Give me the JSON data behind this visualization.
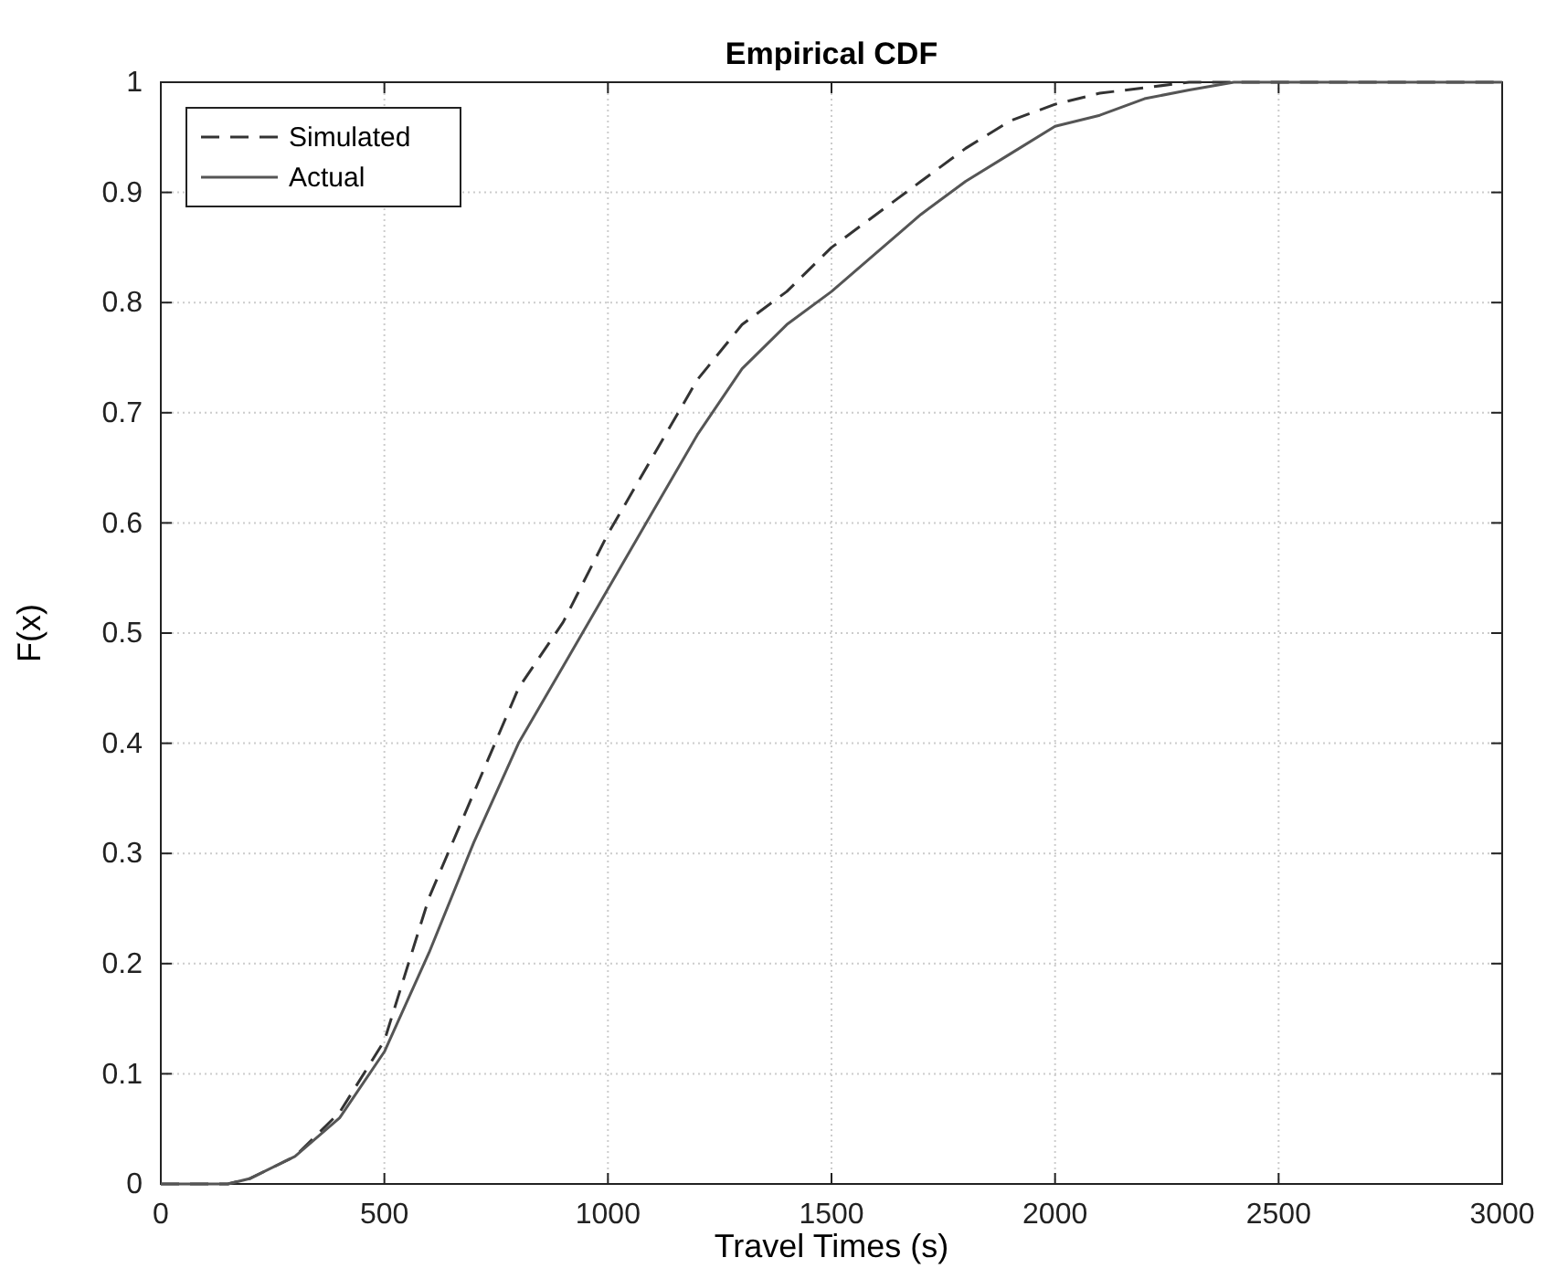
{
  "chart_data": {
    "type": "line",
    "title": "Empirical CDF",
    "xlabel": "Travel Times (s)",
    "ylabel": "F(x)",
    "xlim": [
      0,
      3000
    ],
    "xticks": [
      0,
      500,
      1000,
      1500,
      2000,
      2500,
      3000
    ],
    "ylim": [
      0,
      1
    ],
    "yticks": [
      0,
      0.1,
      0.2,
      0.3,
      0.4,
      0.5,
      0.6,
      0.7,
      0.8,
      0.9,
      1
    ],
    "grid": true,
    "legend": "top left",
    "series": [
      {
        "name": "Simulated",
        "color": "#333333",
        "line_style": "dashed",
        "x": [
          0,
          150,
          200,
          300,
          400,
          500,
          600,
          700,
          800,
          900,
          1000,
          1100,
          1200,
          1300,
          1400,
          1500,
          1600,
          1700,
          1800,
          1900,
          2000,
          2100,
          2200,
          2300,
          2500,
          3000
        ],
        "values": [
          0,
          0,
          0.005,
          0.025,
          0.065,
          0.13,
          0.26,
          0.355,
          0.45,
          0.51,
          0.59,
          0.66,
          0.73,
          0.78,
          0.81,
          0.85,
          0.88,
          0.91,
          0.94,
          0.965,
          0.98,
          0.99,
          0.995,
          1,
          1,
          1
        ]
      },
      {
        "name": "Actual",
        "color": "#555555",
        "line_style": "solid",
        "x": [
          0,
          150,
          200,
          300,
          400,
          500,
          600,
          700,
          800,
          900,
          1000,
          1100,
          1200,
          1300,
          1400,
          1500,
          1600,
          1700,
          1800,
          1900,
          2000,
          2100,
          2200,
          2300,
          2400,
          2500,
          3000
        ],
        "values": [
          0,
          0,
          0.005,
          0.025,
          0.06,
          0.12,
          0.21,
          0.31,
          0.4,
          0.47,
          0.54,
          0.61,
          0.68,
          0.74,
          0.78,
          0.81,
          0.845,
          0.88,
          0.91,
          0.935,
          0.96,
          0.97,
          0.985,
          0.993,
          1,
          1,
          1
        ]
      }
    ]
  }
}
